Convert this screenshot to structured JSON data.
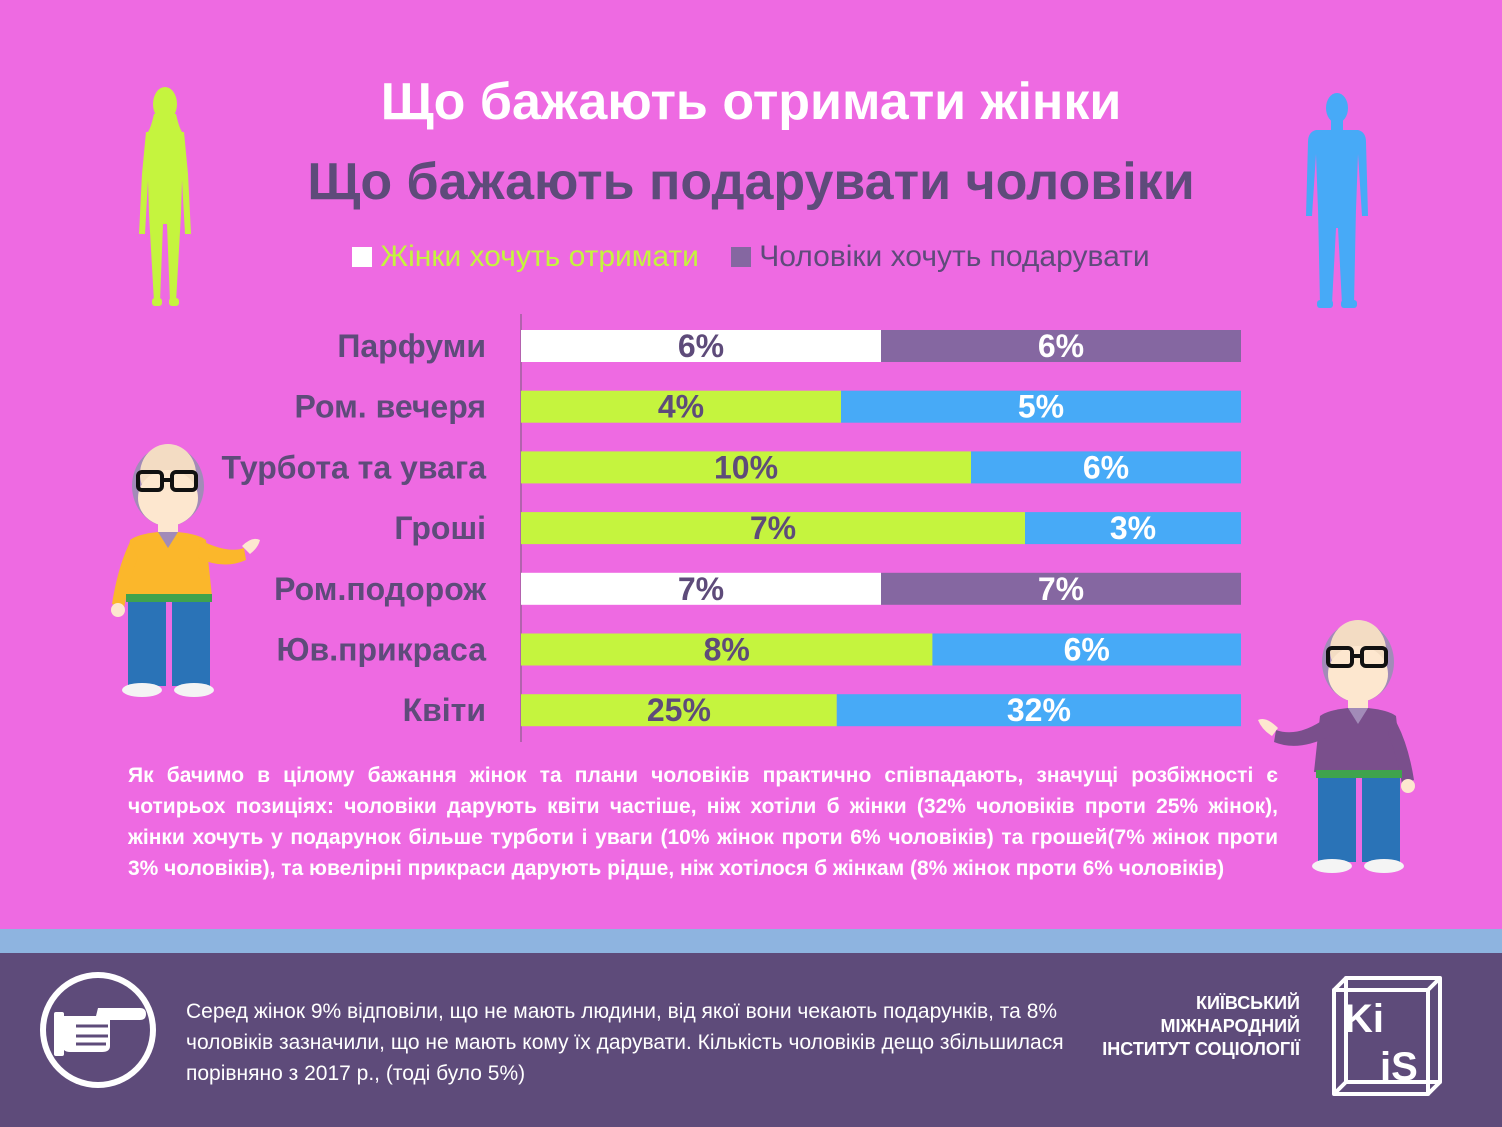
{
  "title_line1": "Що бажають отримати жінки",
  "title_line2": "Що бажають подарувати чоловіки",
  "legend": {
    "women": "Жінки хочуть отримати",
    "men": "Чоловіки хочуть подарувати"
  },
  "colors": {
    "background": "#ee6ae2",
    "women_bar": "#c5f43e",
    "men_bar": "#47aaf7",
    "women_bar_alt": "#ffffff",
    "men_bar_alt": "#8567a1",
    "dark_text": "#5e4b7a"
  },
  "chart_data": {
    "type": "bar",
    "orientation": "horizontal-stacked-100%",
    "categories": [
      "Парфуми",
      "Ром. вечеря",
      "Турбота та увага",
      "Гроші",
      "Ром.подорож",
      "Юв.прикраса",
      "Квіти"
    ],
    "series": [
      {
        "name": "Жінки хочуть отримати",
        "values": [
          6,
          4,
          10,
          7,
          7,
          8,
          25
        ],
        "labels": [
          "6%",
          "4%",
          "10%",
          "7%",
          "7%",
          "8%",
          "25%"
        ]
      },
      {
        "name": "Чоловіки хочуть подарувати",
        "values": [
          6,
          5,
          6,
          3,
          7,
          6,
          32
        ],
        "labels": [
          "6%",
          "5%",
          "6%",
          "3%",
          "7%",
          "6%",
          "32%"
        ]
      }
    ],
    "highlighted_categories": [
      "Парфуми",
      "Ром.подорож"
    ],
    "legend_position": "top-center",
    "grid": false
  },
  "paragraph": "Як бачимо в цілому бажання жінок та плани чоловіків практично співпадають, значущі розбіжності є чотирьох позиціях: чоловіки дарують квіти частіше, ніж хотіли б жінки (32% чоловіків проти 25% жінок), жінки хочуть у подарунок більше турботи і уваги (10% жінок проти 6% чоловіків) та грошей(7% жінок проти 3% чоловіків), та ювелірні прикраси дарують рідше, ніж хотілося б жінкам (8% жінок проти 6% чоловіків)",
  "footer": {
    "note": "Серед жінок 9% відповіли, що не мають людини, від якої вони чекають подарунків, та 8% чоловіків зазначили, що не мають кому їх дарувати. Кількість чоловіків дещо збільшилася порівняно з 2017 р., (тоді було 5%)",
    "org_lines": [
      "КИЇВСЬКИЙ",
      "МІЖНАРОДНИЙ",
      "ІНСТИТУТ СОЦІОЛОГІЇ"
    ],
    "logo_text_top": "Ki",
    "logo_text_bottom": "iS"
  },
  "icons": [
    "woman-silhouette-icon",
    "man-silhouette-icon",
    "pointing-hand-icon",
    "professor-character-left",
    "professor-character-right",
    "kiis-logo-icon"
  ]
}
